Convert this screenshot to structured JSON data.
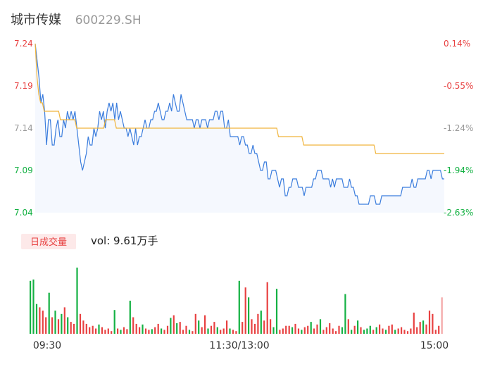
{
  "header": {
    "stock_name": "城市传媒",
    "stock_code": "600229.SH"
  },
  "chart_data": {
    "type": "line",
    "price_axis": {
      "ticks": [
        "7.24",
        "7.19",
        "7.14",
        "7.09",
        "7.04"
      ],
      "ylim": [
        7.04,
        7.24
      ],
      "tick_colors": [
        "#e84141",
        "#e84141",
        "#999999",
        "#14b143",
        "#14b143"
      ]
    },
    "pct_axis": {
      "ticks": [
        "0.14%",
        "-0.55%",
        "-1.24%",
        "-1.94%",
        "-2.63%"
      ],
      "tick_colors": [
        "#e84141",
        "#e84141",
        "#999999",
        "#14b143",
        "#14b143"
      ]
    },
    "time_axis": {
      "ticks": [
        "09:30",
        "11:30/13:00",
        "15:00"
      ]
    },
    "series": [
      {
        "type": "line",
        "color": "#3b7ddd",
        "values": [
          7.24,
          7.22,
          7.2,
          7.17,
          7.18,
          7.16,
          7.12,
          7.15,
          7.15,
          7.12,
          7.12,
          7.14,
          7.15,
          7.13,
          7.13,
          7.15,
          7.14,
          7.16,
          7.15,
          7.16,
          7.15,
          7.16,
          7.14,
          7.12,
          7.1,
          7.09,
          7.1,
          7.11,
          7.13,
          7.12,
          7.12,
          7.14,
          7.13,
          7.14,
          7.16,
          7.15,
          7.16,
          7.14,
          7.16,
          7.17,
          7.16,
          7.17,
          7.15,
          7.17,
          7.15,
          7.16,
          7.15,
          7.14,
          7.14,
          7.13,
          7.14,
          7.13,
          7.12,
          7.14,
          7.12,
          7.13,
          7.13,
          7.14,
          7.15,
          7.14,
          7.14,
          7.15,
          7.15,
          7.16,
          7.16,
          7.17,
          7.16,
          7.15,
          7.15,
          7.16,
          7.16,
          7.17,
          7.16,
          7.18,
          7.17,
          7.16,
          7.16,
          7.18,
          7.17,
          7.16,
          7.15,
          7.15,
          7.15,
          7.15,
          7.14,
          7.15,
          7.15,
          7.14,
          7.15,
          7.15,
          7.15,
          7.14,
          7.15,
          7.15,
          7.15,
          7.16,
          7.16,
          7.15,
          7.16,
          7.16,
          7.14,
          7.14,
          7.15,
          7.13,
          7.13,
          7.13,
          7.13,
          7.13,
          7.12,
          7.13,
          7.13,
          7.12,
          7.12,
          7.11,
          7.11,
          7.12,
          7.11,
          7.11,
          7.1,
          7.09,
          7.09,
          7.1,
          7.1,
          7.08,
          7.08,
          7.09,
          7.09,
          7.09,
          7.08,
          7.07,
          7.08,
          7.08,
          7.06,
          7.06,
          7.07,
          7.07,
          7.08,
          7.08,
          7.08,
          7.07,
          7.07,
          7.07,
          7.06,
          7.07,
          7.07,
          7.07,
          7.07,
          7.08,
          7.08,
          7.09,
          7.09,
          7.09,
          7.08,
          7.08,
          7.08,
          7.08,
          7.07,
          7.08,
          7.07,
          7.08,
          7.08,
          7.08,
          7.08,
          7.07,
          7.07,
          7.07,
          7.08,
          7.07,
          7.07,
          7.06,
          7.06,
          7.05,
          7.05,
          7.05,
          7.05,
          7.05,
          7.05,
          7.06,
          7.06,
          7.06,
          7.05,
          7.05,
          7.05,
          7.06,
          7.06,
          7.06,
          7.06,
          7.06,
          7.06,
          7.06,
          7.06,
          7.06,
          7.06,
          7.06,
          7.07,
          7.07,
          7.07,
          7.07,
          7.07,
          7.08,
          7.07,
          7.07,
          7.08,
          7.08,
          7.08,
          7.08,
          7.08,
          7.09,
          7.09,
          7.08,
          7.09,
          7.09,
          7.09,
          7.09,
          7.09,
          7.08,
          7.08
        ]
      },
      {
        "type": "line",
        "color": "#f0b43c",
        "values": [
          7.24,
          7.2,
          7.18,
          7.17,
          7.17,
          7.16,
          7.16,
          7.16,
          7.16,
          7.16,
          7.16,
          7.16,
          7.16,
          7.16,
          7.15,
          7.15,
          7.15,
          7.15,
          7.15,
          7.15,
          7.15,
          7.15,
          7.15,
          7.14,
          7.14,
          7.14,
          7.14,
          7.14,
          7.14,
          7.14,
          7.14,
          7.14,
          7.14,
          7.14,
          7.14,
          7.14,
          7.14,
          7.14,
          7.14,
          7.15,
          7.15,
          7.15,
          7.15,
          7.15,
          7.15,
          7.14,
          7.14,
          7.14,
          7.14,
          7.14,
          7.14,
          7.14,
          7.14,
          7.14,
          7.14,
          7.14,
          7.14,
          7.14,
          7.14,
          7.14,
          7.14,
          7.14,
          7.14,
          7.14,
          7.14,
          7.14,
          7.14,
          7.14,
          7.14,
          7.14,
          7.14,
          7.14,
          7.14,
          7.14,
          7.14,
          7.14,
          7.14,
          7.14,
          7.14,
          7.14,
          7.14,
          7.14,
          7.14,
          7.14,
          7.14,
          7.14,
          7.14,
          7.14,
          7.14,
          7.14,
          7.14,
          7.14,
          7.14,
          7.14,
          7.14,
          7.14,
          7.14,
          7.14,
          7.14,
          7.14,
          7.14,
          7.14,
          7.14,
          7.14,
          7.14,
          7.14,
          7.14,
          7.14,
          7.14,
          7.14,
          7.14,
          7.14,
          7.14,
          7.14,
          7.14,
          7.14,
          7.14,
          7.14,
          7.14,
          7.14,
          7.14,
          7.14,
          7.14,
          7.14,
          7.14,
          7.14,
          7.14,
          7.14,
          7.14,
          7.14,
          7.14,
          7.14,
          7.14,
          7.14,
          7.14,
          7.13,
          7.13,
          7.13,
          7.13,
          7.13,
          7.13,
          7.13,
          7.13,
          7.13,
          7.13,
          7.13,
          7.13,
          7.13,
          7.13,
          7.12,
          7.12,
          7.12,
          7.12,
          7.12,
          7.12,
          7.12,
          7.12,
          7.12,
          7.12,
          7.12,
          7.12,
          7.12,
          7.12,
          7.12,
          7.12,
          7.12,
          7.12,
          7.12,
          7.12,
          7.12,
          7.12,
          7.12,
          7.12,
          7.12,
          7.12,
          7.12,
          7.12,
          7.12,
          7.12,
          7.12,
          7.12,
          7.12,
          7.12,
          7.12,
          7.12,
          7.12,
          7.12,
          7.12,
          7.12,
          7.11,
          7.11,
          7.11,
          7.11,
          7.11,
          7.11,
          7.11,
          7.11,
          7.11,
          7.11,
          7.11,
          7.11,
          7.11,
          7.11,
          7.11,
          7.11,
          7.11,
          7.11,
          7.11,
          7.11,
          7.11,
          7.11,
          7.11,
          7.11,
          7.11,
          7.11,
          7.11,
          7.11,
          7.11,
          7.11,
          7.11,
          7.11,
          7.11,
          7.11,
          7.11,
          7.11,
          7.11,
          7.11,
          7.11
        ]
      }
    ],
    "volume": {
      "label": "日成交量",
      "vol_text": "vol: 9.61万手",
      "ylim": [
        0,
        100
      ],
      "colors": {
        "up": "#e84141",
        "down": "#14b143"
      },
      "bars": [
        [
          80,
          "down"
        ],
        [
          82,
          "down"
        ],
        [
          45,
          "down"
        ],
        [
          40,
          "up"
        ],
        [
          35,
          "up"
        ],
        [
          25,
          "up"
        ],
        [
          62,
          "down"
        ],
        [
          25,
          "up"
        ],
        [
          35,
          "down"
        ],
        [
          22,
          "up"
        ],
        [
          30,
          "down"
        ],
        [
          40,
          "up"
        ],
        [
          25,
          "down"
        ],
        [
          18,
          "up"
        ],
        [
          15,
          "up"
        ],
        [
          100,
          "down"
        ],
        [
          30,
          "up"
        ],
        [
          20,
          "up"
        ],
        [
          15,
          "up"
        ],
        [
          10,
          "up"
        ],
        [
          12,
          "up"
        ],
        [
          8,
          "up"
        ],
        [
          14,
          "down"
        ],
        [
          10,
          "up"
        ],
        [
          6,
          "up"
        ],
        [
          8,
          "up"
        ],
        [
          4,
          "up"
        ],
        [
          36,
          "down"
        ],
        [
          8,
          "up"
        ],
        [
          6,
          "down"
        ],
        [
          10,
          "up"
        ],
        [
          7,
          "up"
        ],
        [
          50,
          "down"
        ],
        [
          25,
          "up"
        ],
        [
          15,
          "up"
        ],
        [
          10,
          "up"
        ],
        [
          14,
          "down"
        ],
        [
          8,
          "up"
        ],
        [
          6,
          "up"
        ],
        [
          7,
          "down"
        ],
        [
          10,
          "up"
        ],
        [
          15,
          "up"
        ],
        [
          8,
          "down"
        ],
        [
          6,
          "up"
        ],
        [
          12,
          "up"
        ],
        [
          24,
          "down"
        ],
        [
          28,
          "up"
        ],
        [
          16,
          "down"
        ],
        [
          18,
          "up"
        ],
        [
          6,
          "up"
        ],
        [
          12,
          "up"
        ],
        [
          6,
          "down"
        ],
        [
          4,
          "up"
        ],
        [
          30,
          "up"
        ],
        [
          20,
          "down"
        ],
        [
          10,
          "up"
        ],
        [
          28,
          "up"
        ],
        [
          8,
          "down"
        ],
        [
          12,
          "up"
        ],
        [
          18,
          "up"
        ],
        [
          10,
          "down"
        ],
        [
          6,
          "up"
        ],
        [
          8,
          "up"
        ],
        [
          20,
          "up"
        ],
        [
          8,
          "down"
        ],
        [
          6,
          "up"
        ],
        [
          4,
          "up"
        ],
        [
          80,
          "down"
        ],
        [
          18,
          "up"
        ],
        [
          70,
          "up"
        ],
        [
          55,
          "down"
        ],
        [
          22,
          "up"
        ],
        [
          15,
          "up"
        ],
        [
          30,
          "up"
        ],
        [
          35,
          "down"
        ],
        [
          20,
          "up"
        ],
        [
          78,
          "up"
        ],
        [
          22,
          "up"
        ],
        [
          10,
          "down"
        ],
        [
          68,
          "down"
        ],
        [
          6,
          "up"
        ],
        [
          8,
          "up"
        ],
        [
          12,
          "up"
        ],
        [
          12,
          "up"
        ],
        [
          10,
          "down"
        ],
        [
          15,
          "up"
        ],
        [
          8,
          "up"
        ],
        [
          6,
          "down"
        ],
        [
          10,
          "up"
        ],
        [
          12,
          "up"
        ],
        [
          18,
          "down"
        ],
        [
          8,
          "up"
        ],
        [
          14,
          "up"
        ],
        [
          22,
          "down"
        ],
        [
          6,
          "up"
        ],
        [
          10,
          "up"
        ],
        [
          16,
          "up"
        ],
        [
          8,
          "up"
        ],
        [
          4,
          "up"
        ],
        [
          12,
          "up"
        ],
        [
          10,
          "down"
        ],
        [
          60,
          "down"
        ],
        [
          22,
          "up"
        ],
        [
          6,
          "down"
        ],
        [
          12,
          "up"
        ],
        [
          20,
          "down"
        ],
        [
          10,
          "up"
        ],
        [
          6,
          "down"
        ],
        [
          8,
          "down"
        ],
        [
          12,
          "down"
        ],
        [
          6,
          "up"
        ],
        [
          10,
          "down"
        ],
        [
          14,
          "up"
        ],
        [
          8,
          "up"
        ],
        [
          6,
          "down"
        ],
        [
          12,
          "up"
        ],
        [
          14,
          "up"
        ],
        [
          6,
          "down"
        ],
        [
          8,
          "up"
        ],
        [
          10,
          "up"
        ],
        [
          6,
          "up"
        ],
        [
          4,
          "up"
        ],
        [
          8,
          "up"
        ],
        [
          32,
          "up"
        ],
        [
          10,
          "up"
        ],
        [
          18,
          "up"
        ],
        [
          20,
          "down"
        ],
        [
          14,
          "up"
        ],
        [
          35,
          "up"
        ],
        [
          30,
          "up"
        ],
        [
          6,
          "up"
        ],
        [
          12,
          "up"
        ],
        [
          55,
          "up"
        ]
      ]
    }
  }
}
